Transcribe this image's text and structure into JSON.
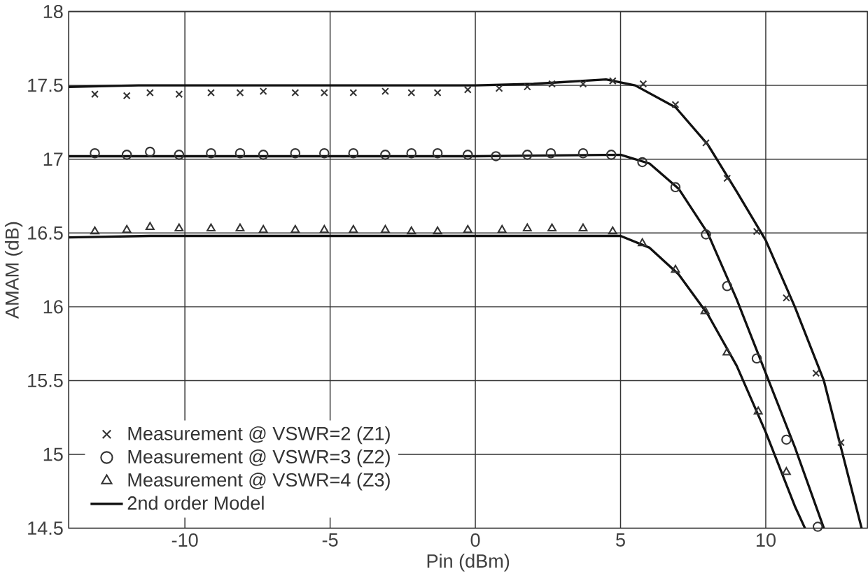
{
  "chart_data": {
    "type": "scatter",
    "xlabel": "Pin (dBm)",
    "ylabel": "AMAM (dB)",
    "xlim": [
      -14,
      13.5
    ],
    "ylim": [
      14.5,
      18
    ],
    "xticks": [
      -10,
      -5,
      0,
      5,
      10
    ],
    "yticks": [
      14.5,
      15,
      15.5,
      16,
      16.5,
      17,
      17.5,
      18
    ],
    "grid": true,
    "legend": "bottom left",
    "series": [
      {
        "name": "Measurement @ VSWR=2 (Z1)",
        "color": "#333333",
        "marker": "cross",
        "x": [
          -13.1,
          -12.0,
          -11.2,
          -10.2,
          -9.1,
          -8.1,
          -7.3,
          -6.2,
          -5.2,
          -4.2,
          -3.1,
          -2.2,
          -1.3,
          -0.26,
          0.82,
          1.79,
          2.64,
          3.71,
          4.73,
          5.78,
          6.89,
          7.94,
          8.67,
          9.69,
          10.71,
          11.73,
          12.59
        ],
        "values": [
          17.44,
          17.43,
          17.45,
          17.44,
          17.45,
          17.45,
          17.46,
          17.45,
          17.45,
          17.45,
          17.46,
          17.45,
          17.45,
          17.47,
          17.48,
          17.49,
          17.51,
          17.51,
          17.53,
          17.51,
          17.37,
          17.11,
          16.87,
          16.51,
          16.06,
          15.55,
          15.08
        ]
      },
      {
        "name": "Measurement @ VSWR=3 (Z2)",
        "color": "#333333",
        "marker": "circle",
        "x": [
          -13.1,
          -12.0,
          -11.2,
          -10.2,
          -9.1,
          -8.1,
          -7.3,
          -6.2,
          -5.2,
          -4.2,
          -3.1,
          -2.2,
          -1.3,
          -0.26,
          0.71,
          1.79,
          2.6,
          3.71,
          4.68,
          5.75,
          6.89,
          7.94,
          8.67,
          9.69,
          10.71,
          11.79
        ],
        "values": [
          17.04,
          17.03,
          17.05,
          17.03,
          17.04,
          17.04,
          17.03,
          17.04,
          17.04,
          17.04,
          17.03,
          17.04,
          17.04,
          17.03,
          17.02,
          17.03,
          17.04,
          17.04,
          17.03,
          16.98,
          16.81,
          16.49,
          16.14,
          15.65,
          15.1,
          14.51
        ]
      },
      {
        "name": "Measurement @ VSWR=4 (Z3)",
        "color": "#333333",
        "marker": "triangle",
        "x": [
          -13.1,
          -12.0,
          -11.2,
          -10.2,
          -9.1,
          -8.1,
          -7.3,
          -6.2,
          -5.2,
          -4.2,
          -3.1,
          -2.2,
          -1.3,
          -0.26,
          0.92,
          1.79,
          2.64,
          3.71,
          4.73,
          5.75,
          6.89,
          7.91,
          8.67,
          9.74,
          10.71
        ],
        "values": [
          16.51,
          16.52,
          16.54,
          16.53,
          16.53,
          16.53,
          16.52,
          16.52,
          16.52,
          16.52,
          16.52,
          16.51,
          16.51,
          16.52,
          16.52,
          16.53,
          16.53,
          16.53,
          16.51,
          16.43,
          16.25,
          15.97,
          15.69,
          15.29,
          14.88
        ]
      },
      {
        "name": "2nd order Model",
        "type": "line",
        "color": "#111111",
        "marker": "none",
        "x": [
          -14,
          -11.6,
          0,
          2,
          4.5,
          5.5,
          6.9,
          8,
          9,
          10,
          11,
          12,
          13.3
        ],
        "values": [
          17.49,
          17.5,
          17.5,
          17.51,
          17.54,
          17.5,
          17.35,
          17.1,
          16.78,
          16.45,
          16.0,
          15.5,
          14.5
        ]
      },
      {
        "type": "line",
        "color": "#111111",
        "marker": "none",
        "x": [
          -14,
          0,
          5,
          6,
          7,
          8,
          9,
          10,
          11,
          12.0
        ],
        "values": [
          17.02,
          17.02,
          17.03,
          16.97,
          16.8,
          16.5,
          16.05,
          15.55,
          15.05,
          14.5
        ]
      },
      {
        "type": "line",
        "color": "#111111",
        "marker": "none",
        "x": [
          -14,
          -11.2,
          0,
          5,
          6,
          7,
          8,
          9,
          10,
          11,
          11.35
        ],
        "values": [
          16.47,
          16.48,
          16.48,
          16.48,
          16.4,
          16.22,
          15.95,
          15.6,
          15.15,
          14.65,
          14.5
        ]
      }
    ]
  }
}
